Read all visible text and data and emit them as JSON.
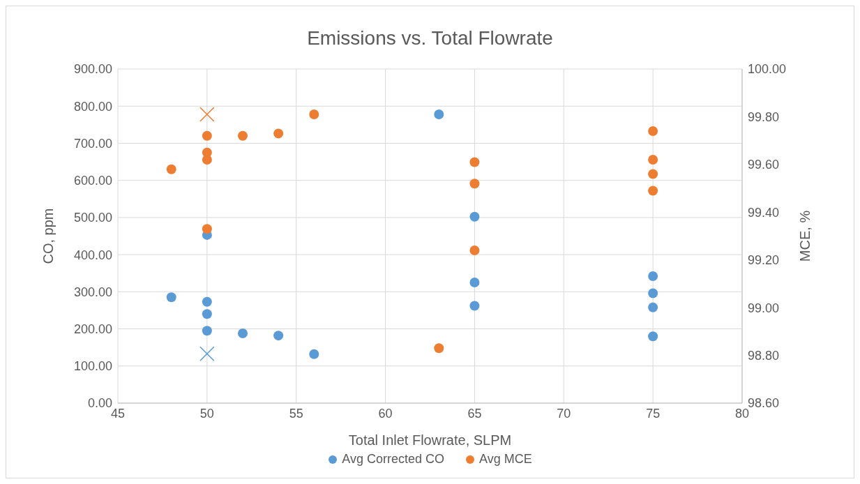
{
  "chart_data": {
    "type": "scatter",
    "title": "Emissions vs. Total Flowrate",
    "xlabel": "Total Inlet Flowrate, SLPM",
    "ylabel": "CO, ppm",
    "y2label": "MCE, %",
    "xlim": [
      45,
      80
    ],
    "xticks": [
      45,
      50,
      55,
      60,
      65,
      70,
      75,
      80
    ],
    "ylim": [
      0,
      900
    ],
    "yticks": [
      {
        "value": 0,
        "label": "0.00"
      },
      {
        "value": 100,
        "label": "100.00"
      },
      {
        "value": 200,
        "label": "200.00"
      },
      {
        "value": 300,
        "label": "300.00"
      },
      {
        "value": 400,
        "label": "400.00"
      },
      {
        "value": 500,
        "label": "500.00"
      },
      {
        "value": 600,
        "label": "600.00"
      },
      {
        "value": 700,
        "label": "700.00"
      },
      {
        "value": 800,
        "label": "800.00"
      },
      {
        "value": 900,
        "label": "900.00"
      }
    ],
    "y2lim": [
      98.6,
      100
    ],
    "y2ticks": [
      {
        "value": 98.6,
        "label": "98.60"
      },
      {
        "value": 98.8,
        "label": "98.80"
      },
      {
        "value": 99,
        "label": "99.00"
      },
      {
        "value": 99.2,
        "label": "99.20"
      },
      {
        "value": 99.4,
        "label": "99.40"
      },
      {
        "value": 99.6,
        "label": "99.60"
      },
      {
        "value": 99.8,
        "label": "99.80"
      },
      {
        "value": 100,
        "label": "100.00"
      }
    ],
    "grid": true,
    "legend": "bottom",
    "marker": "circle",
    "series": [
      {
        "name": "Avg Corrected CO",
        "color": "#5b9bd5",
        "x": [
          48,
          50,
          50,
          50,
          50,
          52,
          54,
          56,
          63,
          65,
          65,
          65,
          75,
          75,
          75,
          75
        ],
        "values": [
          285,
          453,
          273,
          240,
          195,
          188,
          182,
          132,
          778,
          502,
          325,
          262,
          342,
          296,
          258,
          180
        ]
      },
      {
        "name": "Avg MCE",
        "color": "#ed7d31",
        "axis": "y2",
        "x": [
          48,
          50,
          50,
          50,
          50,
          52,
          54,
          56,
          63,
          65,
          65,
          65,
          75,
          75,
          75,
          75
        ],
        "values": [
          99.58,
          99.72,
          99.65,
          99.62,
          99.33,
          99.72,
          99.73,
          99.81,
          98.83,
          99.61,
          99.52,
          99.24,
          99.74,
          99.62,
          99.56,
          99.49
        ]
      },
      {
        "color": "#5b9bd5",
        "marker": "cross",
        "x": [
          50
        ],
        "values": [
          133
        ]
      },
      {
        "color": "#ed7d31",
        "marker": "cross",
        "axis": "y2",
        "x": [
          50
        ],
        "values": [
          99.81
        ]
      }
    ]
  }
}
